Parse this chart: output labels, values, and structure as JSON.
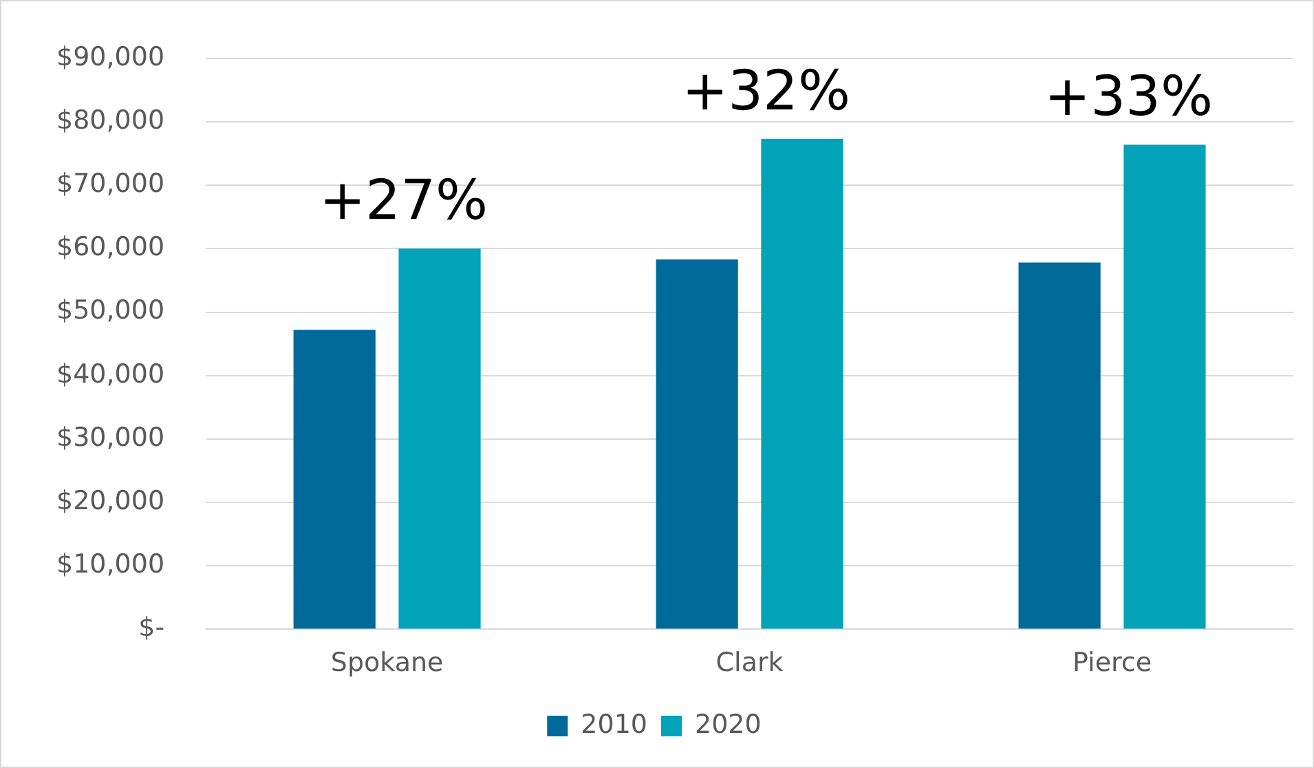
{
  "chart_data": {
    "type": "bar",
    "categories": [
      "Spokane",
      "Clark",
      "Pierce"
    ],
    "series": [
      {
        "name": "2010",
        "color": "#006a9a",
        "values": [
          47200,
          58300,
          57800
        ]
      },
      {
        "name": "2020",
        "color": "#00a3b8",
        "values": [
          60000,
          77300,
          76400
        ]
      }
    ],
    "ylim": [
      0,
      90000
    ],
    "yticks": [
      {
        "value": 0,
        "label": "$-"
      },
      {
        "value": 10000,
        "label": "$10,000"
      },
      {
        "value": 20000,
        "label": "$20,000"
      },
      {
        "value": 30000,
        "label": "$30,000"
      },
      {
        "value": 40000,
        "label": "$40,000"
      },
      {
        "value": 50000,
        "label": "$50,000"
      },
      {
        "value": 60000,
        "label": "$60,000"
      },
      {
        "value": 70000,
        "label": "$70,000"
      },
      {
        "value": 80000,
        "label": "$80,000"
      },
      {
        "value": 90000,
        "label": "$90,000"
      }
    ],
    "grid": "y",
    "legend": "bottom",
    "annotations": [
      "+27%",
      "+32%",
      "+33%"
    ]
  }
}
